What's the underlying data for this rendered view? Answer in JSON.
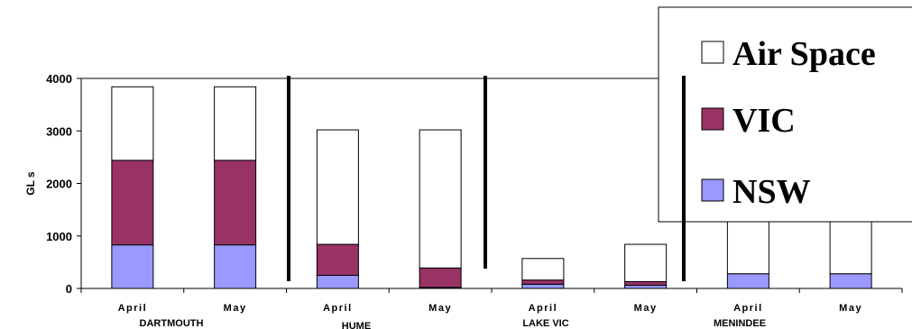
{
  "chart_data": {
    "type": "bar",
    "stacked": true,
    "ylabel": "GL s",
    "ylim": [
      0,
      4000
    ],
    "yticks": [
      "0",
      "1000",
      "2000",
      "3000",
      "4000"
    ],
    "categories": [
      "April",
      "May",
      "April",
      "May",
      "April",
      "May",
      "April",
      "May"
    ],
    "groups": [
      "DARTMOUTH",
      "HUME",
      "LAKE VIC",
      "MENINDEE"
    ],
    "series": [
      {
        "name": "NSW",
        "color": "#9999ff",
        "values": [
          830,
          830,
          250,
          20,
          80,
          60,
          280,
          280
        ]
      },
      {
        "name": "VIC",
        "color": "#993366",
        "values": [
          1610,
          1610,
          590,
          370,
          80,
          70,
          0,
          0
        ]
      },
      {
        "name": "Air Space",
        "color": "#ffffff",
        "values": [
          1400,
          1400,
          2180,
          2630,
          410,
          710,
          1020,
          1020
        ]
      }
    ],
    "legend": {
      "position": "top-right",
      "order": [
        "Air Space",
        "VIC",
        "NSW"
      ]
    },
    "grid": false
  }
}
